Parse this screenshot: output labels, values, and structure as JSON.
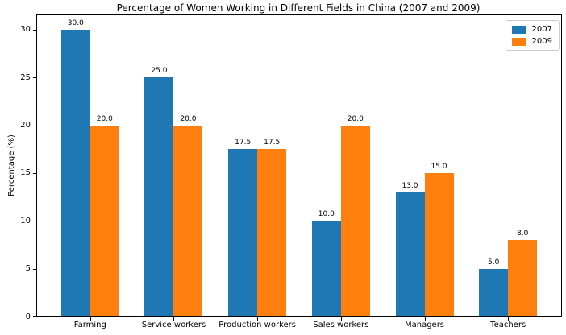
{
  "chart_data": {
    "type": "bar",
    "title": "Percentage of Women Working in Different Fields in China (2007 and 2009)",
    "xlabel": "",
    "ylabel": "Percentage (%)",
    "categories": [
      "Farming",
      "Service workers",
      "Production workers",
      "Sales workers",
      "Managers",
      "Teachers"
    ],
    "series": [
      {
        "name": "2007",
        "color": "#1f77b4",
        "values": [
          30.0,
          25.0,
          17.5,
          10.0,
          13.0,
          5.0
        ],
        "value_labels": [
          "30.0",
          "25.0",
          "17.5",
          "10.0",
          "13.0",
          "5.0"
        ]
      },
      {
        "name": "2009",
        "color": "#ff7f0e",
        "values": [
          20.0,
          20.0,
          17.5,
          20.0,
          15.0,
          8.0
        ],
        "value_labels": [
          "20.0",
          "20.0",
          "17.5",
          "20.0",
          "15.0",
          "8.0"
        ]
      }
    ],
    "yticks": [
      0,
      5,
      10,
      15,
      20,
      25,
      30
    ],
    "ylim": [
      0,
      31.5
    ],
    "grid": false,
    "legend_position": "upper right",
    "plot_background": "#ffffff",
    "bar_value_labels_shown": true
  }
}
